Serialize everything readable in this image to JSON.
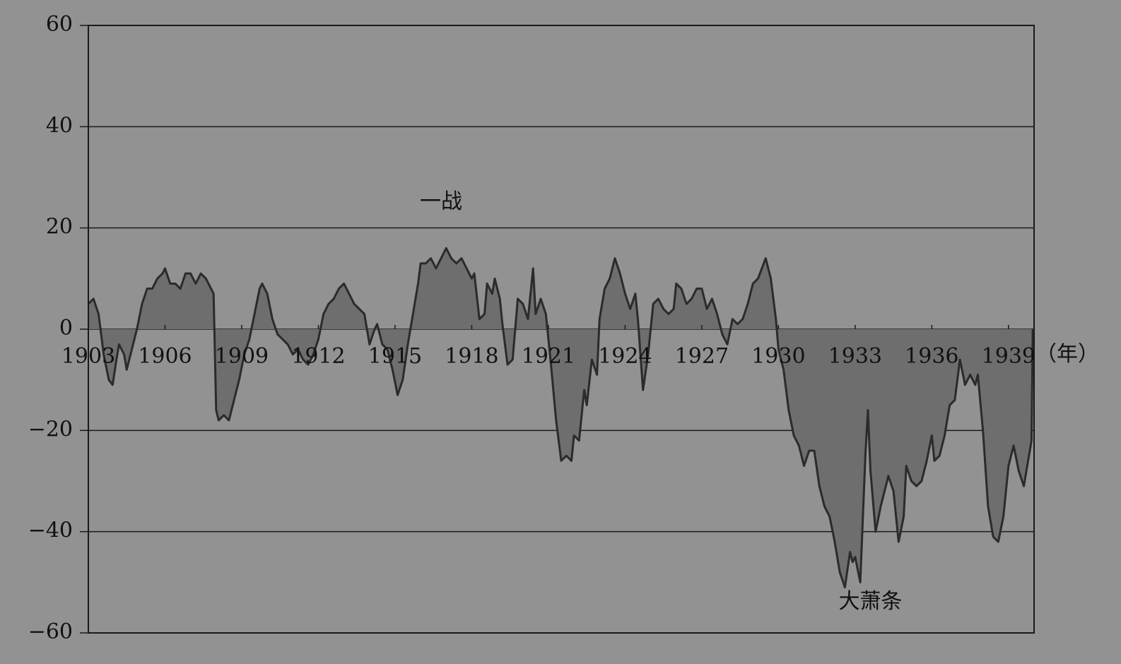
{
  "chart_data": {
    "type": "area",
    "x_label": "（年）",
    "annotations": [
      {
        "text": "一战",
        "x": 1916.8,
        "y": 25
      },
      {
        "text": "大萧条",
        "x": 1933.6,
        "y": -54
      }
    ],
    "x": [
      1903.0,
      1903.2,
      1903.4,
      1903.6,
      1903.8,
      1903.95,
      1904.1,
      1904.2,
      1904.4,
      1904.5,
      1904.7,
      1904.9,
      1905.1,
      1905.3,
      1905.5,
      1905.7,
      1905.9,
      1906.0,
      1906.2,
      1906.4,
      1906.6,
      1906.8,
      1907.0,
      1907.2,
      1907.4,
      1907.6,
      1907.8,
      1907.9,
      1908.0,
      1908.1,
      1908.3,
      1908.5,
      1908.7,
      1908.9,
      1909.1,
      1909.3,
      1909.5,
      1909.7,
      1909.8,
      1910.0,
      1910.2,
      1910.4,
      1910.6,
      1910.8,
      1911.0,
      1911.2,
      1911.4,
      1911.6,
      1911.8,
      1912.0,
      1912.2,
      1912.4,
      1912.6,
      1912.8,
      1913.0,
      1913.2,
      1913.4,
      1913.6,
      1913.8,
      1914.0,
      1914.2,
      1914.3,
      1914.5,
      1914.7,
      1914.9,
      1915.1,
      1915.3,
      1915.5,
      1915.7,
      1915.9,
      1916.0,
      1916.2,
      1916.4,
      1916.6,
      1916.8,
      1917.0,
      1917.2,
      1917.4,
      1917.6,
      1917.8,
      1918.0,
      1918.1,
      1918.3,
      1918.5,
      1918.6,
      1918.8,
      1918.9,
      1919.1,
      1919.2,
      1919.4,
      1919.6,
      1919.8,
      1920.0,
      1920.2,
      1920.4,
      1920.5,
      1920.7,
      1920.9,
      1921.1,
      1921.3,
      1921.5,
      1921.7,
      1921.9,
      1922.0,
      1922.2,
      1922.4,
      1922.5,
      1922.7,
      1922.9,
      1923.0,
      1923.2,
      1923.4,
      1923.6,
      1923.8,
      1924.0,
      1924.2,
      1924.4,
      1924.5,
      1924.7,
      1924.9,
      1925.1,
      1925.3,
      1925.5,
      1925.7,
      1925.9,
      1926.0,
      1926.2,
      1926.4,
      1926.6,
      1926.8,
      1927.0,
      1927.2,
      1927.4,
      1927.6,
      1927.8,
      1928.0,
      1928.2,
      1928.4,
      1928.6,
      1928.8,
      1929.0,
      1929.2,
      1929.5,
      1929.7,
      1929.9,
      1930.0,
      1930.2,
      1930.4,
      1930.6,
      1930.8,
      1931.0,
      1931.2,
      1931.4,
      1931.6,
      1931.8,
      1932.0,
      1932.2,
      1932.4,
      1932.6,
      1932.8,
      1932.9,
      1933.0,
      1933.2,
      1933.4,
      1933.5,
      1933.6,
      1933.8,
      1934.0,
      1934.3,
      1934.5,
      1934.7,
      1934.9,
      1935.0,
      1935.2,
      1935.4,
      1935.6,
      1935.8,
      1936.0,
      1936.1,
      1936.3,
      1936.5,
      1936.7,
      1936.9,
      1937.1,
      1937.3,
      1937.5,
      1937.7,
      1937.8,
      1938.0,
      1938.2,
      1938.4,
      1938.6,
      1938.8,
      1939.0,
      1939.2,
      1939.4,
      1939.6,
      1939.8,
      1939.9,
      1939.95
    ],
    "values": [
      5,
      6,
      3,
      -5,
      -10,
      -11,
      -6,
      -3,
      -5,
      -8,
      -4,
      0,
      5,
      8,
      8,
      10,
      11,
      12,
      9,
      9,
      8,
      11,
      11,
      9,
      11,
      10,
      8,
      7,
      -16,
      -18,
      -17,
      -18,
      -14,
      -10,
      -5,
      -2,
      3,
      8,
      9,
      7,
      2,
      -1,
      -2,
      -3,
      -5,
      -4,
      -6,
      -7,
      -5,
      -2,
      3,
      5,
      6,
      8,
      9,
      7,
      5,
      4,
      3,
      -3,
      0,
      1,
      -3,
      -4,
      -8,
      -13,
      -10,
      -3,
      3,
      9,
      13,
      13,
      14,
      12,
      14,
      16,
      14,
      13,
      14,
      12,
      10,
      11,
      2,
      3,
      9,
      7,
      10,
      6,
      1,
      -7,
      -6,
      6,
      5,
      2,
      12,
      3,
      6,
      3,
      -7,
      -18,
      -26,
      -25,
      -26,
      -21,
      -22,
      -12,
      -15,
      -6,
      -9,
      2,
      8,
      10,
      14,
      11,
      7,
      4,
      7,
      2,
      -12,
      -5,
      5,
      6,
      4,
      3,
      4,
      9,
      8,
      5,
      6,
      8,
      8,
      4,
      6,
      3,
      -1,
      -3,
      2,
      1,
      2,
      5,
      9,
      10,
      14,
      10,
      2,
      -4,
      -8,
      -16,
      -21,
      -23,
      -27,
      -24,
      -24,
      -31,
      -35,
      -37,
      -42,
      -48,
      -51,
      -44,
      -46,
      -45,
      -50,
      -25,
      -16,
      -28,
      -40,
      -35,
      -29,
      -32,
      -42,
      -37,
      -27,
      -30,
      -31,
      -30,
      -26,
      -21,
      -26,
      -25,
      -21,
      -15,
      -14,
      -6,
      -11,
      -9,
      -11,
      -9,
      -20,
      -35,
      -41,
      -42,
      -37,
      -27,
      -23,
      -28,
      -31,
      -25,
      -22,
      0
    ],
    "line_color": "#2b2b2b",
    "fill_color": "#6e6e6e",
    "xlim": [
      1903,
      1940
    ],
    "xticks": [
      1903,
      1906,
      1909,
      1912,
      1915,
      1918,
      1921,
      1924,
      1927,
      1930,
      1933,
      1936,
      1939
    ],
    "ylim": [
      -60,
      60
    ],
    "yticks": [
      {
        "value": -60,
        "label": "−60"
      },
      {
        "value": -40,
        "label": "−40"
      },
      {
        "value": -20,
        "label": "−20"
      },
      0,
      20,
      40,
      60
    ],
    "grid": true
  }
}
